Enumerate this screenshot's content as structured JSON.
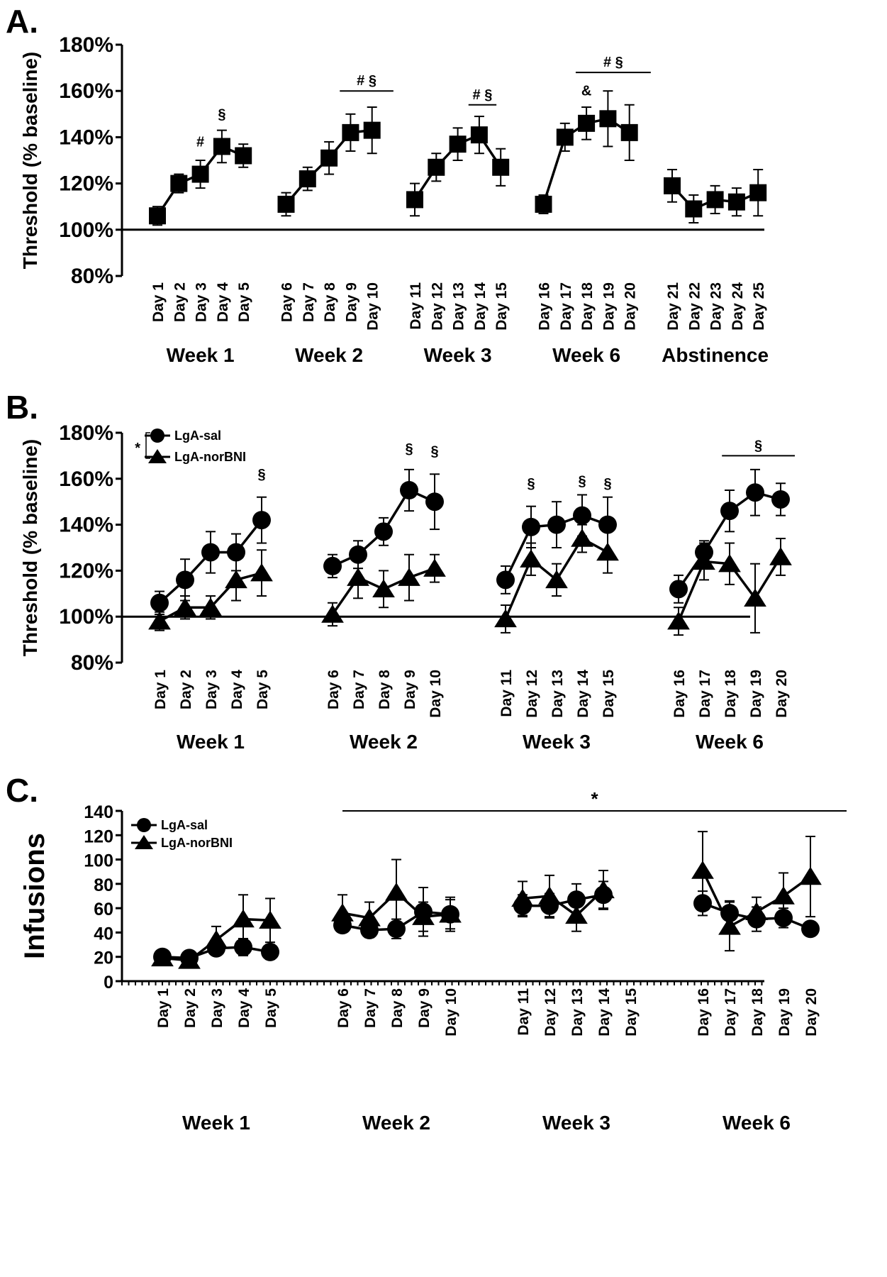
{
  "colors": {
    "ink": "#000000",
    "background": "#ffffff"
  },
  "chart_data": [
    {
      "panel": "A.",
      "type": "line",
      "ylabel": "Threshold (% baseline)",
      "ylim": [
        80,
        180
      ],
      "yticks": [
        "80%",
        "100%",
        "120%",
        "140%",
        "160%",
        "180%"
      ],
      "reference_line": 100,
      "categories": [
        "Day 1",
        "Day 2",
        "Day 3",
        "Day 4",
        "Day 5",
        "Day 6",
        "Day 7",
        "Day 8",
        "Day 9",
        "Day 10",
        "Day 11",
        "Day 12",
        "Day 13",
        "Day 14",
        "Day 15",
        "Day 16",
        "Day 17",
        "Day 18",
        "Day 19",
        "Day 20",
        "Day 21",
        "Day 22",
        "Day 23",
        "Day 24",
        "Day 25"
      ],
      "groups": [
        {
          "label": "Week 1",
          "days": [
            0,
            4
          ]
        },
        {
          "label": "Week 2",
          "days": [
            5,
            9
          ]
        },
        {
          "label": "Week 3",
          "days": [
            10,
            14
          ]
        },
        {
          "label": "Week 6",
          "days": [
            15,
            19
          ]
        },
        {
          "label": "Abstinence",
          "days": [
            20,
            24
          ]
        }
      ],
      "series": [
        {
          "name": "Threshold",
          "marker": "square",
          "values": [
            106,
            120,
            124,
            136,
            132,
            111,
            122,
            131,
            142,
            143,
            113,
            127,
            137,
            141,
            127,
            111,
            140,
            146,
            148,
            142,
            119,
            109,
            113,
            112,
            116
          ],
          "errors": [
            4,
            4,
            6,
            7,
            5,
            5,
            5,
            7,
            8,
            10,
            7,
            6,
            7,
            8,
            8,
            4,
            6,
            7,
            12,
            12,
            7,
            6,
            6,
            6,
            10
          ]
        }
      ],
      "annotations": [
        {
          "text": "#",
          "day": 2,
          "value": 136
        },
        {
          "text": "§",
          "day": 3,
          "value": 148
        },
        {
          "text": "&",
          "day": 17,
          "value": 158
        }
      ],
      "brackets": [
        {
          "text": "# §",
          "from": 7.5,
          "to": 9.5,
          "value": 160
        },
        {
          "text": "# §",
          "from": 12.5,
          "to": 13.8,
          "value": 154
        },
        {
          "text": "# §",
          "from": 16.5,
          "to": 19.5,
          "value": 168
        }
      ]
    },
    {
      "panel": "B.",
      "type": "line",
      "ylabel": "Threshold (% baseline)",
      "ylim": [
        80,
        180
      ],
      "yticks": [
        "80%",
        "100%",
        "120%",
        "140%",
        "160%",
        "180%"
      ],
      "reference_line": 100,
      "categories": [
        "Day 1",
        "Day 2",
        "Day 3",
        "Day 4",
        "Day 5",
        "Day 6",
        "Day 7",
        "Day 8",
        "Day 9",
        "Day 10",
        "Day 11",
        "Day 12",
        "Day 13",
        "Day 14",
        "Day 15",
        "Day 16",
        "Day 17",
        "Day 18",
        "Day 19",
        "Day 20"
      ],
      "groups": [
        {
          "label": "Week 1",
          "days": [
            0,
            4
          ]
        },
        {
          "label": "Week 2",
          "days": [
            5,
            9
          ]
        },
        {
          "label": "Week 3",
          "days": [
            10,
            14
          ]
        },
        {
          "label": "Week 6",
          "days": [
            15,
            19
          ]
        }
      ],
      "legend": {
        "position": "top-left",
        "significance": "*"
      },
      "series": [
        {
          "name": "LgA-sal",
          "marker": "circle",
          "values": [
            106,
            116,
            128,
            128,
            142,
            122,
            127,
            137,
            155,
            150,
            116,
            139,
            140,
            144,
            140,
            112,
            128,
            146,
            154,
            151
          ],
          "errors": [
            5,
            9,
            9,
            8,
            10,
            5,
            6,
            6,
            9,
            12,
            6,
            9,
            10,
            9,
            12,
            6,
            5,
            9,
            10,
            7
          ]
        },
        {
          "name": "LgA-norBNI",
          "marker": "triangle",
          "values": [
            98,
            104,
            104,
            116,
            119,
            101,
            117,
            112,
            117,
            121,
            99,
            125,
            116,
            134,
            128,
            98,
            124,
            123,
            108,
            126
          ],
          "errors": [
            4,
            5,
            5,
            9,
            10,
            5,
            9,
            8,
            10,
            6,
            6,
            7,
            7,
            6,
            9,
            6,
            8,
            9,
            15,
            8
          ]
        }
      ],
      "annotations": [
        {
          "text": "§",
          "day": 4,
          "value": 160
        },
        {
          "text": "§",
          "day": 8,
          "value": 171
        },
        {
          "text": "§",
          "day": 9,
          "value": 170
        },
        {
          "text": "§",
          "day": 11,
          "value": 156
        },
        {
          "text": "§",
          "day": 13,
          "value": 157
        },
        {
          "text": "§",
          "day": 14,
          "value": 156
        }
      ],
      "brackets": [
        {
          "text": "§",
          "from": 16.7,
          "to": 19.2,
          "value": 170
        }
      ]
    },
    {
      "panel": "C.",
      "type": "line",
      "ylabel": "Infusions",
      "ylim": [
        0,
        140
      ],
      "yticks": [
        "0",
        "20",
        "40",
        "60",
        "80",
        "100",
        "120",
        "140"
      ],
      "categories": [
        "Day 1",
        "Day 2",
        "Day 3",
        "Day 4",
        "Day 5",
        "Day 6",
        "Day 7",
        "Day 8",
        "Day 9",
        "Day 10",
        "Day 11",
        "Day 12",
        "Day 13",
        "Day 14",
        "Day 15",
        "Day 16",
        "Day 17",
        "Day 18",
        "Day 19",
        "Day 20"
      ],
      "groups": [
        {
          "label": "Week 1",
          "days": [
            0,
            4
          ]
        },
        {
          "label": "Week 2",
          "days": [
            5,
            9
          ]
        },
        {
          "label": "Week 3",
          "days": [
            10,
            14
          ]
        },
        {
          "label": "Week 6",
          "days": [
            15,
            19
          ]
        }
      ],
      "legend": {
        "position": "top-left"
      },
      "series": [
        {
          "name": "LgA-sal",
          "marker": "circle",
          "values": [
            20,
            19,
            27,
            28,
            24,
            46,
            42,
            43,
            57,
            55,
            62,
            62,
            67,
            71,
            null,
            64,
            56,
            51,
            52,
            43
          ],
          "errors": [
            3,
            3,
            5,
            7,
            6,
            5,
            6,
            8,
            20,
            12,
            9,
            10,
            13,
            11,
            null,
            10,
            10,
            10,
            8,
            5
          ]
        },
        {
          "name": "LgA-norBNI",
          "marker": "triangle",
          "values": [
            19,
            17,
            34,
            51,
            50,
            56,
            52,
            73,
            53,
            55,
            68,
            70,
            54,
            75,
            null,
            91,
            45,
            57,
            70,
            86
          ],
          "errors": [
            3,
            3,
            11,
            20,
            18,
            15,
            13,
            27,
            12,
            14,
            14,
            17,
            13,
            16,
            null,
            32,
            20,
            12,
            19,
            33
          ]
        }
      ],
      "brackets": [
        {
          "text": "*",
          "from": 5,
          "to": 19.5,
          "value": 140
        }
      ]
    }
  ]
}
